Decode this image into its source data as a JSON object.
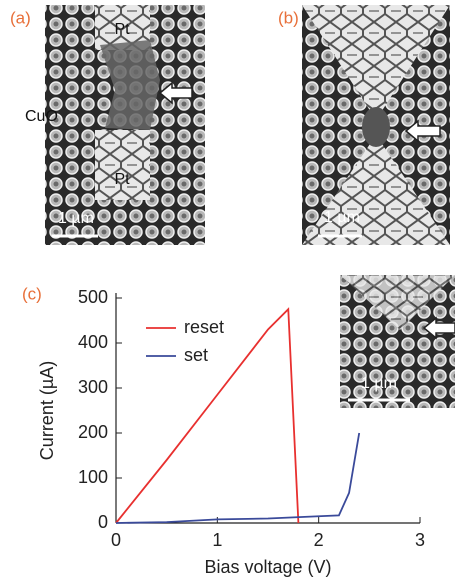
{
  "panels": [
    {
      "label": "(a)",
      "annotations": [
        "Pt",
        "CuO",
        "Pt"
      ],
      "scale_bar": "1 µm"
    },
    {
      "label": "(b)",
      "scale_bar": "1 µm"
    },
    {
      "label": "(c)",
      "inset_scale_bar": "1 µm"
    }
  ],
  "chart_data": {
    "type": "line",
    "xlabel": "Bias voltage (V)",
    "ylabel": "Current (µA)",
    "xlim": [
      0,
      3
    ],
    "xticks": [
      0,
      1,
      2,
      3
    ],
    "ylim": [
      0,
      500
    ],
    "yticks": [
      0,
      100,
      200,
      300,
      400,
      500
    ],
    "legend": "upper left",
    "series": [
      {
        "name": "reset",
        "color": "#e8302f",
        "x": [
          0,
          0.5,
          1.0,
          1.5,
          1.7,
          1.8
        ],
        "values": [
          0,
          140,
          285,
          430,
          475,
          0
        ]
      },
      {
        "name": "set",
        "color": "#3a4a9a",
        "x": [
          0,
          0.5,
          1.0,
          1.5,
          2.0,
          2.2,
          2.3,
          2.4
        ],
        "values": [
          0,
          2,
          8,
          10,
          15,
          17,
          67,
          200
        ]
      }
    ]
  }
}
